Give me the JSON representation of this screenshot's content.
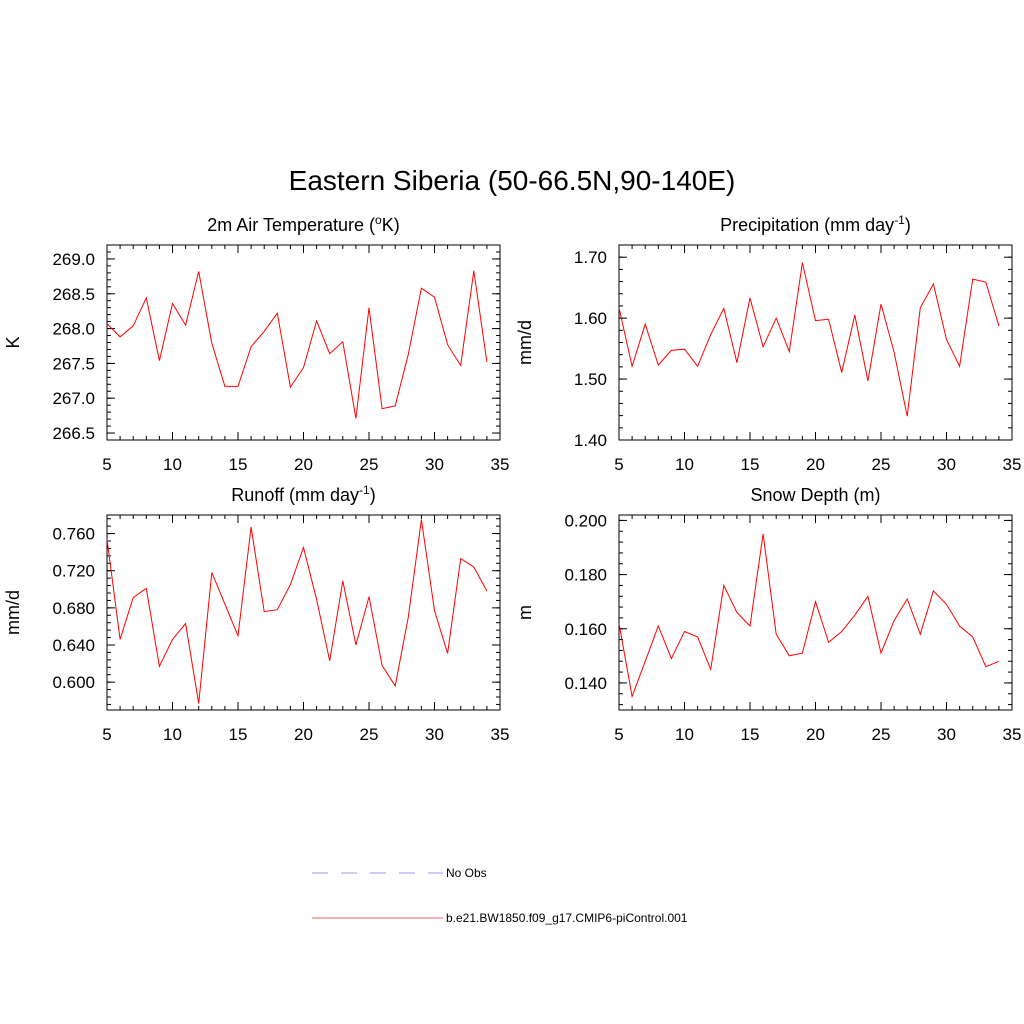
{
  "title": "Eastern Siberia (50-66.5N,90-140E)",
  "legend": [
    {
      "label": "No Obs",
      "color": "#9999ee",
      "dash": true
    },
    {
      "label": "b.e21.BW1850.f09_g17.CMIP6-piControl.001",
      "color": "#ee6666",
      "dash": false
    }
  ],
  "chart_data": [
    {
      "type": "line",
      "title_main": "2m Air Temperature (",
      "title_sup1": "o",
      "title_rest": "K)",
      "ylabel": "K",
      "xlim": [
        5,
        35
      ],
      "ylim": [
        266.4,
        269.2
      ],
      "xticks": [
        5,
        10,
        15,
        20,
        25,
        30,
        35
      ],
      "yticks": [
        266.5,
        267.0,
        267.5,
        268.0,
        268.5,
        269.0
      ],
      "ytick_labels": [
        "266.5",
        "267.0",
        "267.5",
        "268.0",
        "268.5",
        "269.0"
      ],
      "yminor": 0.1,
      "series": [
        {
          "color": "#ff0000",
          "x": [
            5,
            6,
            7,
            8,
            9,
            10,
            11,
            12,
            13,
            14,
            15,
            16,
            17,
            18,
            19,
            20,
            21,
            22,
            23,
            24,
            25,
            26,
            27,
            28,
            29,
            30,
            31,
            32,
            33,
            34
          ],
          "y": [
            268.07,
            267.88,
            268.04,
            268.44,
            267.54,
            268.36,
            268.05,
            268.82,
            267.79,
            267.17,
            267.17,
            267.74,
            267.96,
            268.22,
            267.16,
            267.44,
            268.11,
            267.64,
            267.81,
            266.71,
            268.3,
            266.85,
            266.89,
            267.63,
            268.58,
            268.45,
            267.77,
            267.47,
            268.83,
            267.52
          ]
        }
      ]
    },
    {
      "type": "line",
      "title_main": "Precipitation (mm day",
      "title_sup1": "-1",
      "title_rest": ")",
      "ylabel": "mm/d",
      "xlim": [
        5,
        35
      ],
      "ylim": [
        1.4,
        1.72
      ],
      "xticks": [
        5,
        10,
        15,
        20,
        25,
        30,
        35
      ],
      "yticks": [
        1.4,
        1.5,
        1.6,
        1.7
      ],
      "ytick_labels": [
        "1.40",
        "1.50",
        "1.60",
        "1.70"
      ],
      "yminor": 0.02,
      "series": [
        {
          "color": "#ff0000",
          "x": [
            5,
            6,
            7,
            8,
            9,
            10,
            11,
            12,
            13,
            14,
            15,
            16,
            17,
            18,
            19,
            20,
            21,
            22,
            23,
            24,
            25,
            26,
            27,
            28,
            29,
            30,
            31,
            32,
            33,
            34
          ],
          "y": [
            1.617,
            1.521,
            1.59,
            1.523,
            1.547,
            1.549,
            1.521,
            1.573,
            1.616,
            1.527,
            1.633,
            1.553,
            1.6,
            1.545,
            1.691,
            1.596,
            1.598,
            1.511,
            1.605,
            1.497,
            1.623,
            1.544,
            1.439,
            1.617,
            1.656,
            1.565,
            1.521,
            1.664,
            1.659,
            1.587
          ]
        }
      ]
    },
    {
      "type": "line",
      "title_main": "Runoff (mm day",
      "title_sup1": "-1",
      "title_rest": ")",
      "ylabel": "mm/d",
      "xlim": [
        5,
        35
      ],
      "ylim": [
        0.57,
        0.78
      ],
      "xticks": [
        5,
        10,
        15,
        20,
        25,
        30,
        35
      ],
      "yticks": [
        0.6,
        0.64,
        0.68,
        0.72,
        0.76
      ],
      "ytick_labels": [
        "0.600",
        "0.640",
        "0.680",
        "0.720",
        "0.760"
      ],
      "yminor": 0.008,
      "series": [
        {
          "color": "#ff0000",
          "x": [
            5,
            6,
            7,
            8,
            9,
            10,
            11,
            12,
            13,
            14,
            15,
            16,
            17,
            18,
            19,
            20,
            21,
            22,
            23,
            24,
            25,
            26,
            27,
            28,
            29,
            30,
            31,
            32,
            33,
            34
          ],
          "y": [
            0.754,
            0.646,
            0.691,
            0.701,
            0.617,
            0.646,
            0.663,
            0.577,
            0.718,
            0.684,
            0.65,
            0.767,
            0.676,
            0.678,
            0.705,
            0.745,
            0.689,
            0.623,
            0.709,
            0.64,
            0.692,
            0.618,
            0.596,
            0.67,
            0.775,
            0.677,
            0.631,
            0.733,
            0.724,
            0.698
          ]
        }
      ]
    },
    {
      "type": "line",
      "title_main": "Snow Depth (m)",
      "title_sup1": "",
      "title_rest": "",
      "ylabel": "m",
      "xlim": [
        5,
        35
      ],
      "ylim": [
        0.13,
        0.202
      ],
      "xticks": [
        5,
        10,
        15,
        20,
        25,
        30,
        35
      ],
      "yticks": [
        0.14,
        0.16,
        0.18,
        0.2
      ],
      "ytick_labels": [
        "0.140",
        "0.160",
        "0.180",
        "0.200"
      ],
      "yminor": 0.004,
      "series": [
        {
          "color": "#ff0000",
          "x": [
            5,
            6,
            7,
            8,
            9,
            10,
            11,
            12,
            13,
            14,
            15,
            16,
            17,
            18,
            19,
            20,
            21,
            22,
            23,
            24,
            25,
            26,
            27,
            28,
            29,
            30,
            31,
            32,
            33,
            34
          ],
          "y": [
            0.162,
            0.135,
            0.148,
            0.161,
            0.149,
            0.159,
            0.157,
            0.145,
            0.176,
            0.166,
            0.161,
            0.195,
            0.158,
            0.15,
            0.151,
            0.17,
            0.155,
            0.159,
            0.165,
            0.172,
            0.151,
            0.163,
            0.171,
            0.158,
            0.174,
            0.169,
            0.161,
            0.157,
            0.146,
            0.148
          ]
        }
      ]
    }
  ]
}
